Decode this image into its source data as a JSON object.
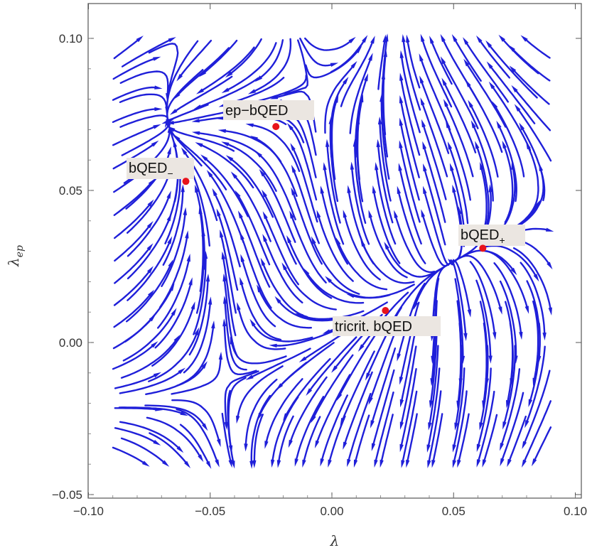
{
  "chart_data": {
    "type": "streamplot",
    "xlabel": "λ",
    "ylabel_main": "λ",
    "ylabel_sub": "ep",
    "xlim": [
      -0.1,
      0.1
    ],
    "ylim": [
      -0.05,
      0.1
    ],
    "field_region": {
      "x": [
        -0.09,
        0.09
      ],
      "y": [
        -0.04,
        0.1
      ]
    },
    "x_ticks": [
      -0.1,
      -0.05,
      0.0,
      0.05,
      0.1
    ],
    "x_tick_labels": [
      "−0.10",
      "−0.05",
      "0.00",
      "0.05",
      "0.10"
    ],
    "y_ticks": [
      -0.05,
      0.0,
      0.05,
      0.1
    ],
    "y_tick_labels": [
      "−0.05",
      "0.00",
      "0.05",
      "0.10"
    ],
    "stream_color": "#1f1fd9",
    "point_color": "#e8141c",
    "fixed_points": [
      {
        "name": "ep-bQED",
        "main": "ep−bQED",
        "sub": "",
        "x": -0.023,
        "y": 0.071,
        "label_side": "above-left"
      },
      {
        "name": "bQED-minus",
        "main": "bQED",
        "sub": "−",
        "x": -0.06,
        "y": 0.053,
        "label_side": "above-left"
      },
      {
        "name": "bQED-plus",
        "main": "bQED",
        "sub": "+",
        "x": 0.062,
        "y": 0.031,
        "label_side": "above-right"
      },
      {
        "name": "tricrit-bQED",
        "main": "tricrit. bQED",
        "sub": "",
        "x": 0.022,
        "y": 0.0105,
        "label_side": "below-left"
      }
    ]
  }
}
